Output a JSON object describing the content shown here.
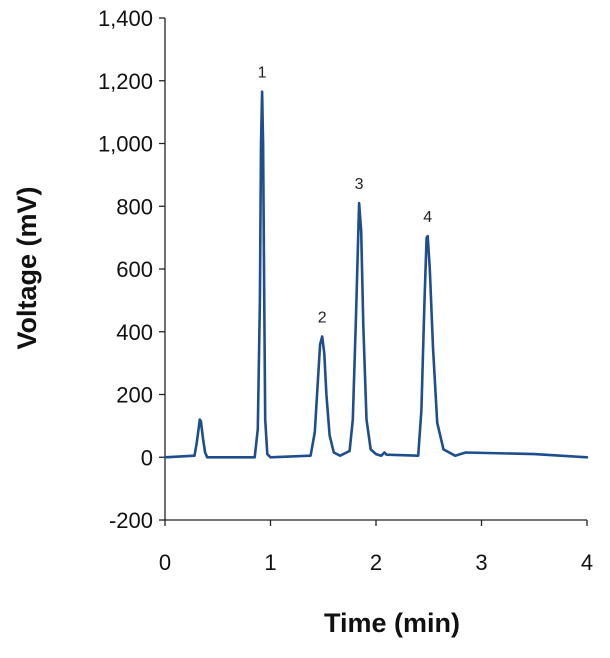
{
  "chart_data": {
    "type": "line",
    "title": "",
    "xlabel": "Time (min)",
    "ylabel": "Voltage (mV)",
    "xlim": [
      0,
      4
    ],
    "ylim": [
      -200,
      1400
    ],
    "x_ticks": [
      "0",
      "1",
      "2",
      "3",
      "4"
    ],
    "y_ticks": [
      "-200",
      "0",
      "200",
      "400",
      "600",
      "800",
      "1,000",
      "1,200",
      "1,400"
    ],
    "grid": false,
    "legend": "none",
    "line_color": "#1f4e8c",
    "series": [
      {
        "x": [
          0.0,
          0.28,
          0.3,
          0.32,
          0.33,
          0.34,
          0.36,
          0.38,
          0.4,
          0.85,
          0.88,
          0.9,
          0.91,
          0.92,
          0.93,
          0.94,
          0.95,
          0.97,
          1.0,
          1.38,
          1.42,
          1.45,
          1.47,
          1.49,
          1.51,
          1.53,
          1.56,
          1.6,
          1.66,
          1.75,
          1.78,
          1.81,
          1.84,
          1.86,
          1.88,
          1.91,
          1.95,
          2.0,
          2.05,
          2.08,
          2.1,
          2.4,
          2.43,
          2.46,
          2.48,
          2.49,
          2.51,
          2.54,
          2.58,
          2.64,
          2.75,
          2.85,
          3.5,
          4.0
        ],
        "y": [
          0,
          5,
          45,
          95,
          120,
          115,
          60,
          15,
          0,
          0,
          90,
          500,
          1000,
          1165,
          1000,
          520,
          120,
          10,
          0,
          5,
          80,
          250,
          360,
          385,
          330,
          200,
          70,
          15,
          5,
          20,
          120,
          450,
          810,
          720,
          420,
          120,
          25,
          10,
          5,
          15,
          8,
          5,
          150,
          500,
          700,
          705,
          600,
          350,
          110,
          25,
          5,
          15,
          10,
          0
        ]
      }
    ],
    "annotations": [
      {
        "text": "1",
        "x": 0.92,
        "y": 1165
      },
      {
        "text": "2",
        "x": 1.49,
        "y": 385
      },
      {
        "text": "3",
        "x": 1.84,
        "y": 810
      },
      {
        "text": "4",
        "x": 2.49,
        "y": 705
      }
    ]
  }
}
